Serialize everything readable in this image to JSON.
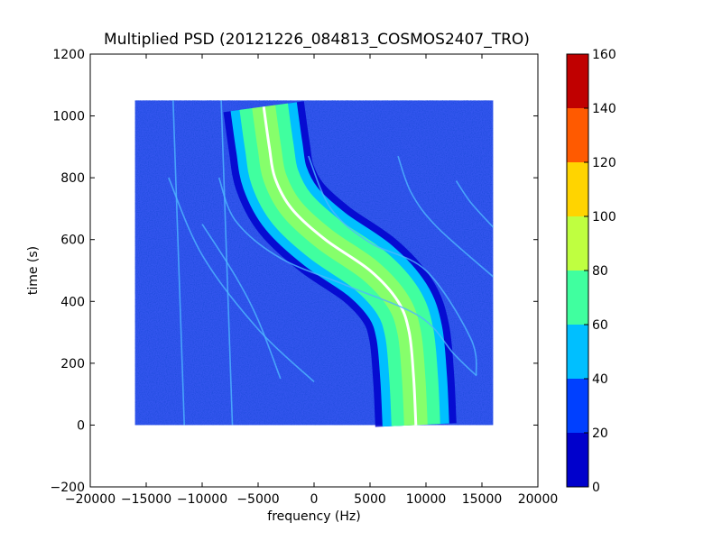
{
  "chart_data": {
    "type": "heatmap",
    "title": "Multiplied PSD (20121226_084813_COSMOS2407_TRO)",
    "xlabel": "frequency (Hz)",
    "ylabel": "time (s)",
    "xlim": [
      -20000,
      20000
    ],
    "ylim": [
      -200,
      1200
    ],
    "xticks": [
      -20000,
      -15000,
      -10000,
      -5000,
      0,
      5000,
      10000,
      15000,
      20000
    ],
    "xtick_labels": [
      "−20000",
      "−15000",
      "−10000",
      "−5000",
      "0",
      "5000",
      "10000",
      "15000",
      "20000"
    ],
    "yticks": [
      -200,
      0,
      200,
      400,
      600,
      800,
      1000,
      1200
    ],
    "ytick_labels": [
      "−200",
      "0",
      "200",
      "400",
      "600",
      "800",
      "1000",
      "1200"
    ],
    "data_extent": {
      "x": [
        -16000,
        16000
      ],
      "y": [
        0,
        1050
      ]
    },
    "colorbar": {
      "levels": [
        0,
        20,
        40,
        60,
        80,
        100,
        120,
        140,
        160
      ],
      "labels": [
        "0",
        "20",
        "40",
        "60",
        "80",
        "100",
        "120",
        "140",
        "160"
      ],
      "colors": [
        "#0000cc",
        "#0040ff",
        "#00bfff",
        "#40ff9f",
        "#bfff40",
        "#ffd400",
        "#ff5a00",
        "#c00000"
      ]
    },
    "background_color": "#3355ee",
    "main_trace": {
      "points": [
        [
          9100,
          0
        ],
        [
          8900,
          150
        ],
        [
          8500,
          300
        ],
        [
          7500,
          400
        ],
        [
          5000,
          500
        ],
        [
          1000,
          600
        ],
        [
          -2000,
          700
        ],
        [
          -3500,
          800
        ],
        [
          -4000,
          900
        ],
        [
          -4500,
          1030
        ]
      ]
    },
    "faint_lines": [
      {
        "points": [
          [
            -11600,
            0
          ],
          [
            -12600,
            1050
          ]
        ]
      },
      {
        "points": [
          [
            -7300,
            0
          ],
          [
            -8300,
            1050
          ]
        ]
      },
      {
        "points": [
          [
            -10000,
            650
          ],
          [
            -7000,
            480
          ],
          [
            -5000,
            340
          ],
          [
            -3000,
            150
          ]
        ]
      },
      {
        "points": [
          [
            -13000,
            800
          ],
          [
            -10000,
            550
          ],
          [
            -5000,
            310
          ],
          [
            0,
            140
          ]
        ]
      },
      {
        "points": [
          [
            -8500,
            800
          ],
          [
            -7000,
            660
          ],
          [
            -3000,
            540
          ],
          [
            3000,
            450
          ],
          [
            9500,
            350
          ],
          [
            12500,
            230
          ],
          [
            14500,
            160
          ]
        ]
      },
      {
        "points": [
          [
            -500,
            870
          ],
          [
            1500,
            700
          ],
          [
            5000,
            590
          ],
          [
            10000,
            500
          ],
          [
            14000,
            280
          ],
          [
            14500,
            160
          ]
        ]
      },
      {
        "points": [
          [
            7500,
            870
          ],
          [
            8700,
            750
          ],
          [
            11000,
            640
          ],
          [
            16000,
            480
          ]
        ]
      },
      {
        "points": [
          [
            12700,
            790
          ],
          [
            14000,
            720
          ],
          [
            16000,
            640
          ]
        ]
      }
    ]
  }
}
